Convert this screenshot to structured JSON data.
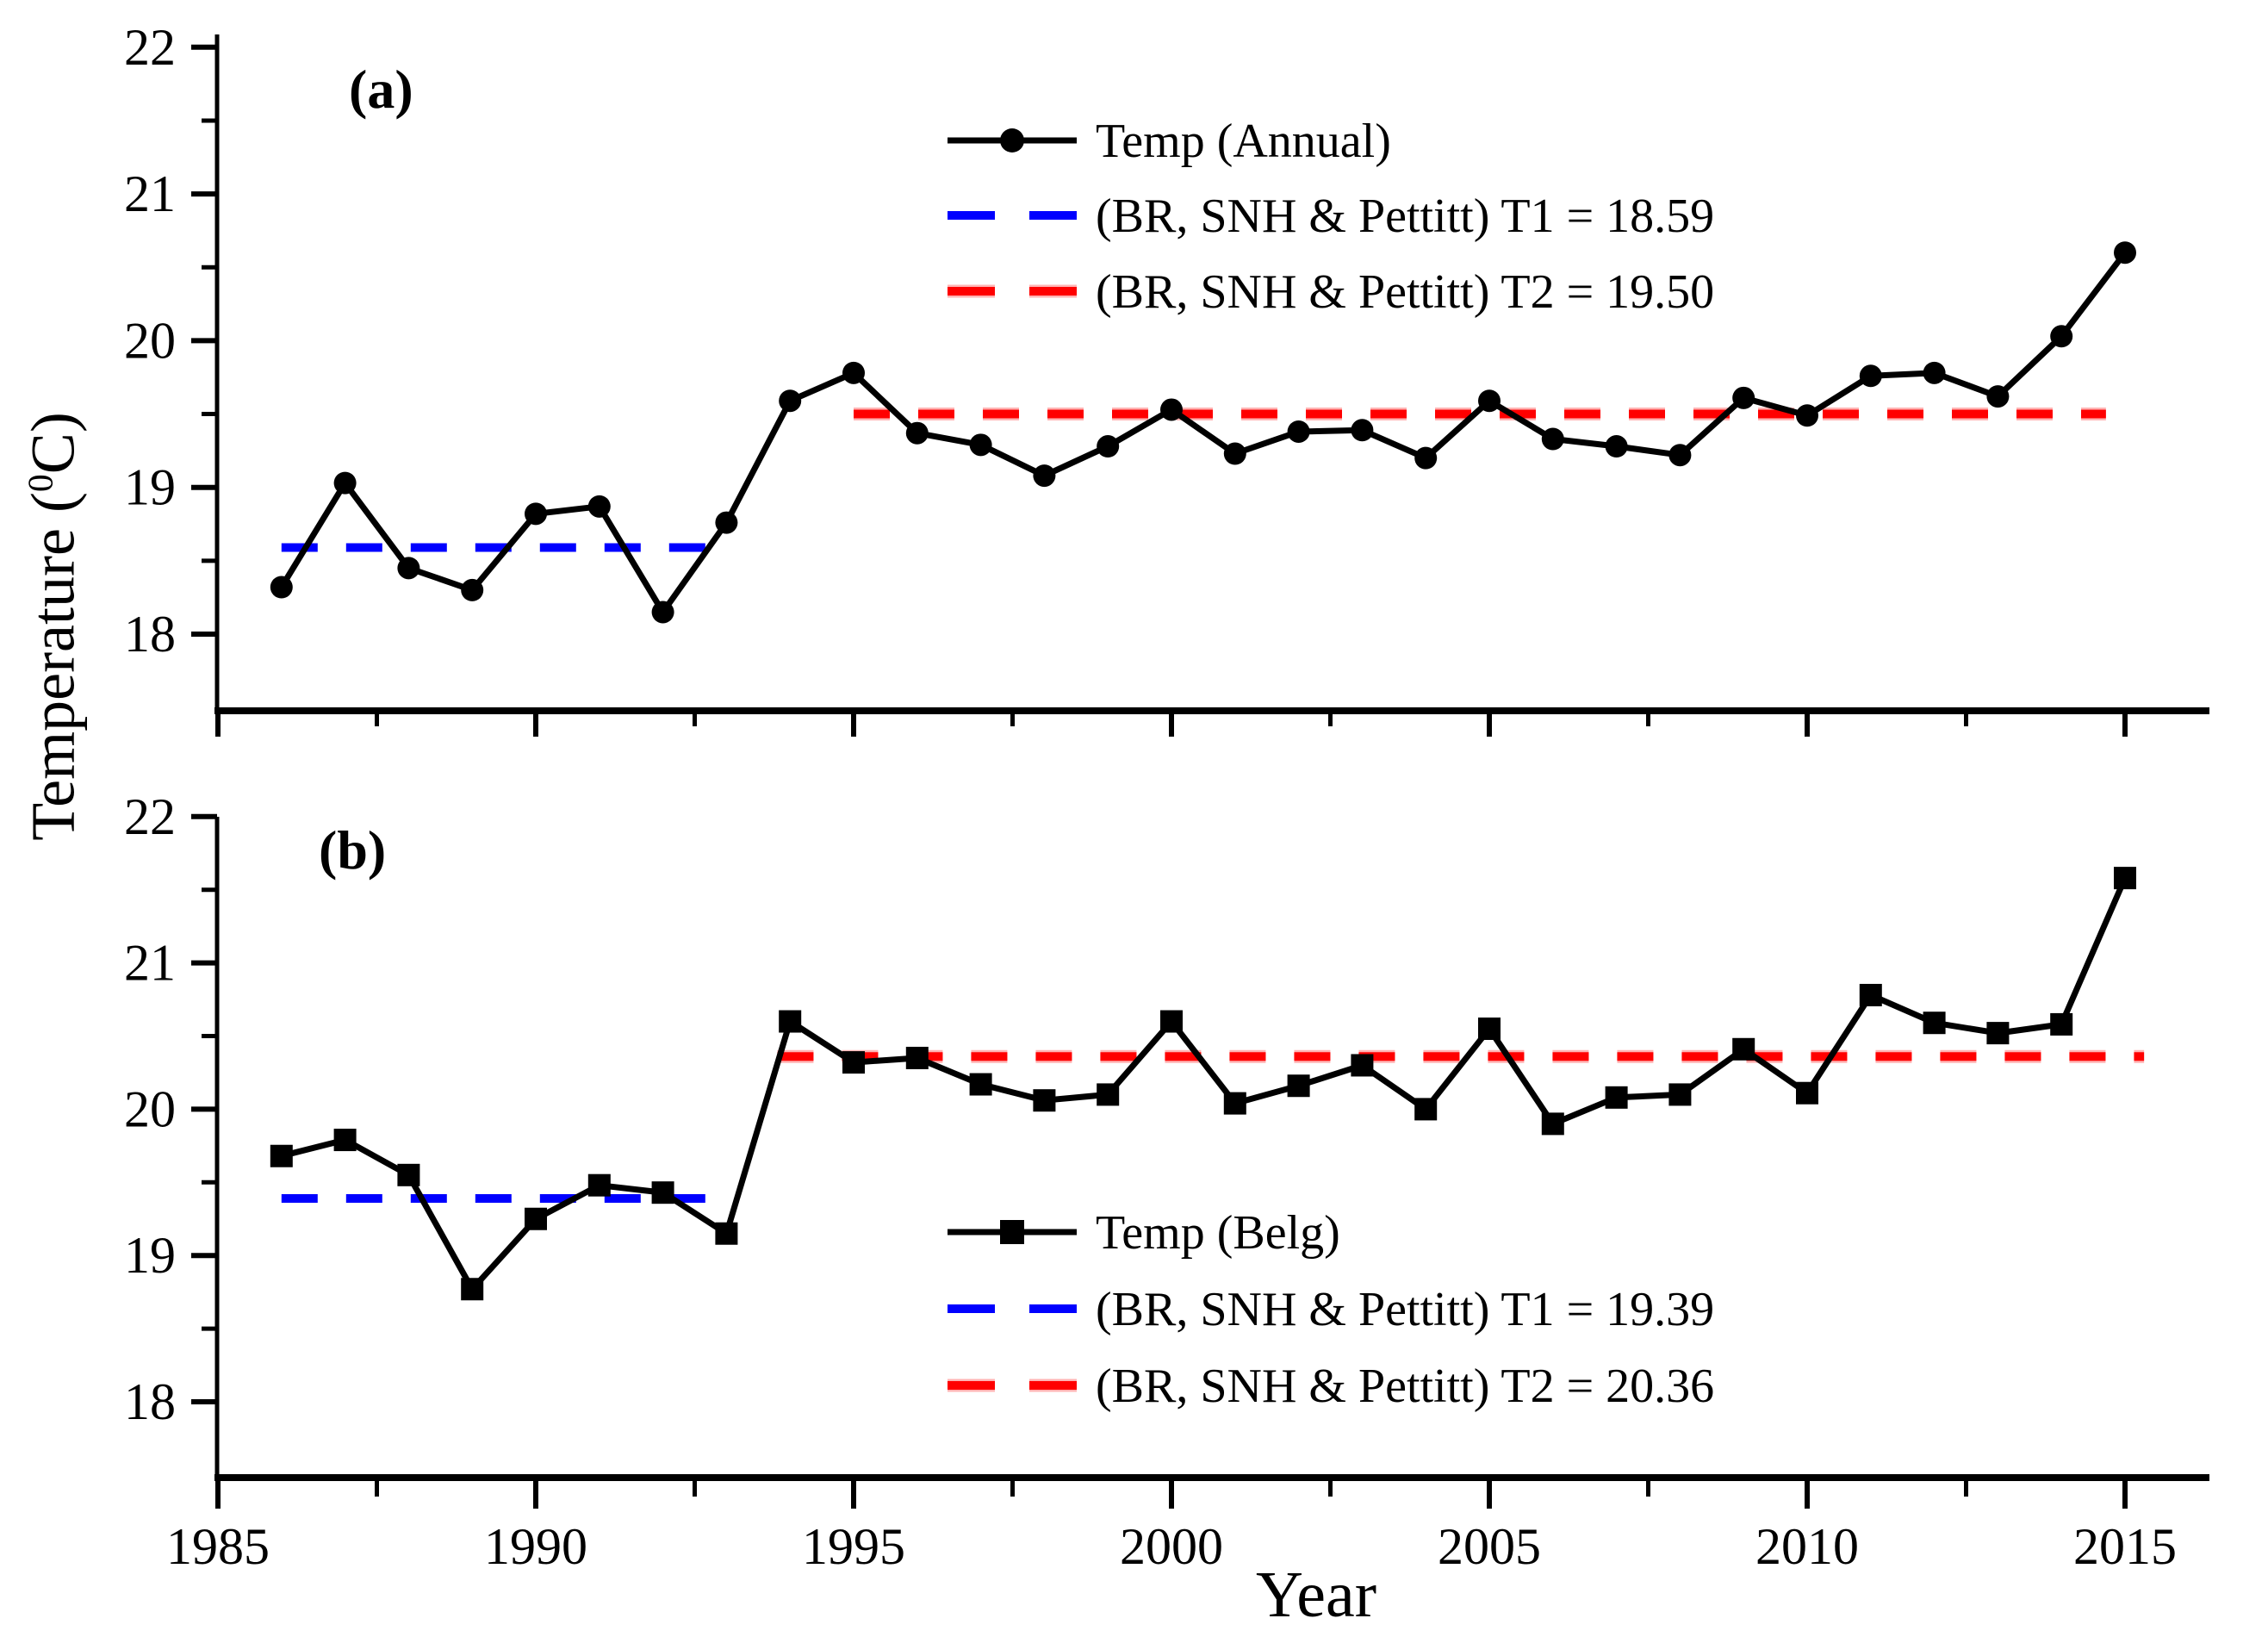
{
  "figure": {
    "x_axis_title": "Year",
    "y_axis_title_pre": "Temperature (",
    "y_axis_title_sup": "0",
    "y_axis_title_post": "C)",
    "colors": {
      "series": "#000000",
      "t1_line": "#0000ff",
      "t2_line": "#ff0000",
      "t2_halo": "#ffb4b4"
    }
  },
  "chart_data": [
    {
      "type": "line",
      "panel_label": "(a)",
      "xlabel": "Year",
      "ylabel": "Temperature (0C)",
      "xlim": [
        1985,
        2016.3
      ],
      "ylim": [
        17.45,
        22.12
      ],
      "x_ticks": [
        1985,
        1990,
        1995,
        2000,
        2005,
        2010,
        2015
      ],
      "x_minor_ticks": [
        1987.5,
        1992.5,
        1997.5,
        2002.5,
        2007.5,
        2012.5
      ],
      "y_ticks": [
        22,
        21,
        20,
        19,
        18
      ],
      "y_minor_ticks": [
        21.5,
        20.5,
        19.5,
        18.5,
        17.5
      ],
      "grid": false,
      "legend_position": "upper-center-right",
      "x": [
        1986,
        1987,
        1988,
        1989,
        1990,
        1991,
        1992,
        1993,
        1994,
        1995,
        1996,
        1997,
        1998,
        1999,
        2000,
        2001,
        2002,
        2003,
        2004,
        2005,
        2006,
        2007,
        2008,
        2009,
        2010,
        2011,
        2012,
        2013,
        2014,
        2015
      ],
      "series": [
        {
          "name": "Temp (Annual)",
          "marker": "circle",
          "color": "#000000",
          "values": [
            18.32,
            19.03,
            18.45,
            18.3,
            18.82,
            18.87,
            18.15,
            18.76,
            19.59,
            19.78,
            19.37,
            19.29,
            19.08,
            19.28,
            19.53,
            19.23,
            19.38,
            19.39,
            19.2,
            19.59,
            19.33,
            19.28,
            19.22,
            19.61,
            19.49,
            19.76,
            19.78,
            19.62,
            20.03,
            20.6
          ]
        }
      ],
      "reference_lines": [
        {
          "name": "(BR, SNH & Pettitt) T1 = 18.59",
          "value": 18.59,
          "color": "#0000ff",
          "style": "dashed",
          "x_start": 1986,
          "x_end": 1993
        },
        {
          "name": "(BR, SNH & Pettitt) T2 = 19.50",
          "value": 19.5,
          "color": "#ff0000",
          "style": "dashed",
          "x_start": 1995,
          "x_end": 2014.7
        }
      ],
      "legend": [
        {
          "swatch": "line-circle",
          "color": "#000000",
          "label": "Temp (Annual)"
        },
        {
          "swatch": "dashes",
          "color": "#0000ff",
          "label": "(BR, SNH & Pettitt) T1 = 18.59"
        },
        {
          "swatch": "dashes",
          "color": "#ff0000",
          "label": "(BR, SNH & Pettitt) T2 = 19.50"
        }
      ]
    },
    {
      "type": "line",
      "panel_label": "(b)",
      "xlabel": "Year",
      "ylabel": "Temperature (0C)",
      "xlim": [
        1985,
        2016.3
      ],
      "ylim": [
        17.45,
        22.0
      ],
      "x_ticks": [
        1985,
        1990,
        1995,
        2000,
        2005,
        2010,
        2015
      ],
      "x_minor_ticks": [
        1987.5,
        1992.5,
        1997.5,
        2002.5,
        2007.5,
        2012.5
      ],
      "y_ticks": [
        22,
        21,
        20,
        19,
        18
      ],
      "y_minor_ticks": [
        21.5,
        20.5,
        19.5,
        18.5,
        17.5
      ],
      "grid": false,
      "legend_position": "lower-center-right",
      "x": [
        1986,
        1987,
        1988,
        1989,
        1990,
        1991,
        1992,
        1993,
        1994,
        1995,
        1996,
        1997,
        1998,
        1999,
        2000,
        2001,
        2002,
        2003,
        2004,
        2005,
        2006,
        2007,
        2008,
        2009,
        2010,
        2011,
        2012,
        2013,
        2014,
        2015
      ],
      "series": [
        {
          "name": "Temp (Belg)",
          "marker": "square",
          "color": "#000000",
          "values": [
            19.68,
            19.79,
            19.55,
            18.77,
            19.25,
            19.48,
            19.43,
            19.15,
            20.6,
            20.32,
            20.35,
            20.17,
            20.06,
            20.1,
            20.6,
            20.04,
            20.16,
            20.3,
            20.0,
            20.55,
            19.9,
            20.08,
            20.1,
            20.41,
            20.11,
            20.78,
            20.59,
            20.52,
            20.58,
            21.58
          ]
        }
      ],
      "reference_lines": [
        {
          "name": "(BR, SNH & Pettitt) T1 = 19.39",
          "value": 19.39,
          "color": "#0000ff",
          "style": "dashed",
          "x_start": 1986,
          "x_end": 1993
        },
        {
          "name": "(BR, SNH & Pettitt) T2 =  20.36",
          "value": 20.36,
          "color": "#ff0000",
          "style": "dashed",
          "x_start": 1993.8,
          "x_end": 2015.3
        }
      ],
      "legend": [
        {
          "swatch": "line-square",
          "color": "#000000",
          "label": "Temp (Belg)"
        },
        {
          "swatch": "dashes",
          "color": "#0000ff",
          "label": "(BR, SNH & Pettitt) T1 = 19.39"
        },
        {
          "swatch": "dashes",
          "color": "#ff0000",
          "label": "(BR, SNH & Pettitt) T2 =  20.36"
        }
      ]
    }
  ]
}
